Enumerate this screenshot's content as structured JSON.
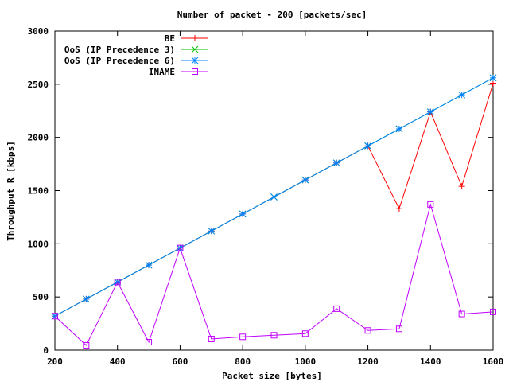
{
  "chart_data": {
    "type": "line",
    "title": "Number of packet - 200 [packets/sec]",
    "xlabel": "Packet size [bytes]",
    "ylabel": "Throughput R [kbps]",
    "xlim": [
      200,
      1600
    ],
    "ylim": [
      0,
      3000
    ],
    "xticks": [
      200,
      400,
      600,
      800,
      1000,
      1200,
      1400,
      1600
    ],
    "yticks": [
      0,
      500,
      1000,
      1500,
      2000,
      2500,
      3000
    ],
    "grid": false,
    "legend_position": "top-left",
    "x": [
      200,
      300,
      400,
      500,
      600,
      700,
      800,
      900,
      1000,
      1100,
      1200,
      1300,
      1400,
      1500,
      1600
    ],
    "series": [
      {
        "name": "BE",
        "color": "#ff0000",
        "marker": "plus",
        "values": [
          320,
          480,
          640,
          800,
          960,
          1120,
          1280,
          1440,
          1600,
          1760,
          1920,
          1330,
          2240,
          1540,
          2510
        ]
      },
      {
        "name": "QoS (IP Precedence 3)",
        "color": "#00c000",
        "marker": "cross",
        "values": [
          320,
          480,
          640,
          800,
          960,
          1120,
          1280,
          1440,
          1600,
          1760,
          1920,
          2080,
          2240,
          2400,
          2560
        ]
      },
      {
        "name": "QoS (IP Precedence 6)",
        "color": "#0080ff",
        "marker": "star",
        "values": [
          320,
          480,
          640,
          800,
          960,
          1120,
          1280,
          1440,
          1600,
          1760,
          1920,
          2080,
          2240,
          2400,
          2560
        ]
      },
      {
        "name": "INAME",
        "color": "#c000ff",
        "marker": "square",
        "values": [
          320,
          45,
          640,
          75,
          960,
          105,
          125,
          140,
          155,
          390,
          185,
          200,
          1370,
          340,
          360
        ]
      }
    ]
  }
}
